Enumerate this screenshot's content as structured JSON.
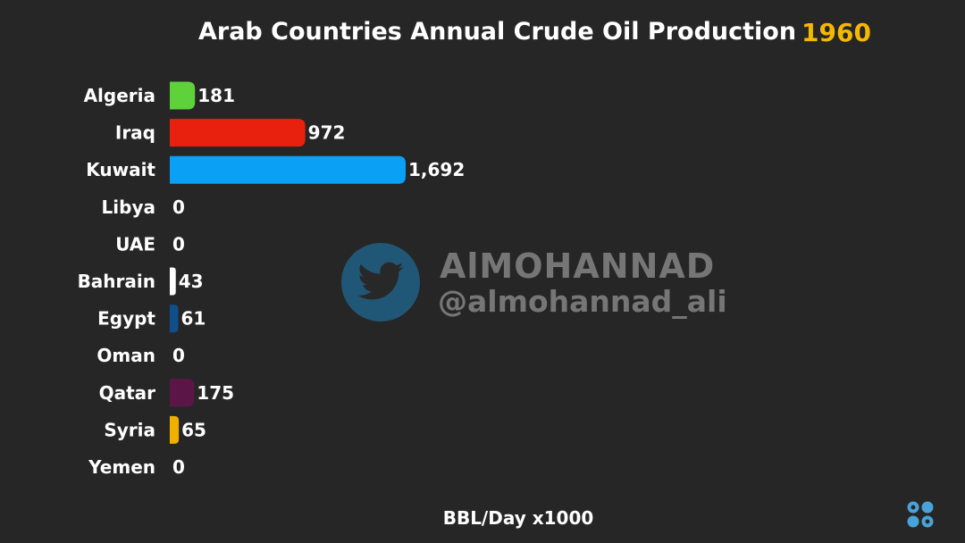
{
  "header": {
    "title": "Arab Countries Annual Crude Oil Production",
    "year": "1960"
  },
  "watermark": {
    "icon": "twitter-bird-icon",
    "name": "AlMOHANNAD",
    "handle": "@almohannad_ali"
  },
  "logo": {
    "icon": "opec-logo-icon"
  },
  "colors": {
    "background": "#262626",
    "year": "#f5b800",
    "watermark_circle": "#1c7fb8"
  },
  "chart_data": {
    "type": "bar",
    "orientation": "horizontal",
    "title": "Arab Countries Annual Crude Oil Production",
    "xlabel": "BBL/Day x1000",
    "ylabel": "",
    "categories": [
      "Algeria",
      "Iraq",
      "Kuwait",
      "Libya",
      "UAE",
      "Bahrain",
      "Egypt",
      "Oman",
      "Qatar",
      "Syria",
      "Yemen"
    ],
    "values": [
      181,
      972,
      1692,
      0,
      0,
      43,
      61,
      0,
      175,
      65,
      0
    ],
    "value_labels": [
      "181",
      "972",
      "1,692",
      "0",
      "0",
      "43",
      "61",
      "0",
      "175",
      "65",
      "0"
    ],
    "colors": [
      "#5fd13a",
      "#e8210f",
      "#0aa0f6",
      "#cccccc",
      "#cccccc",
      "#ffffff",
      "#0e4f8c",
      "#cccccc",
      "#5b1647",
      "#f0b000",
      "#cccccc"
    ],
    "xlim": [
      0,
      1692
    ],
    "grid": false,
    "legend": "none"
  }
}
